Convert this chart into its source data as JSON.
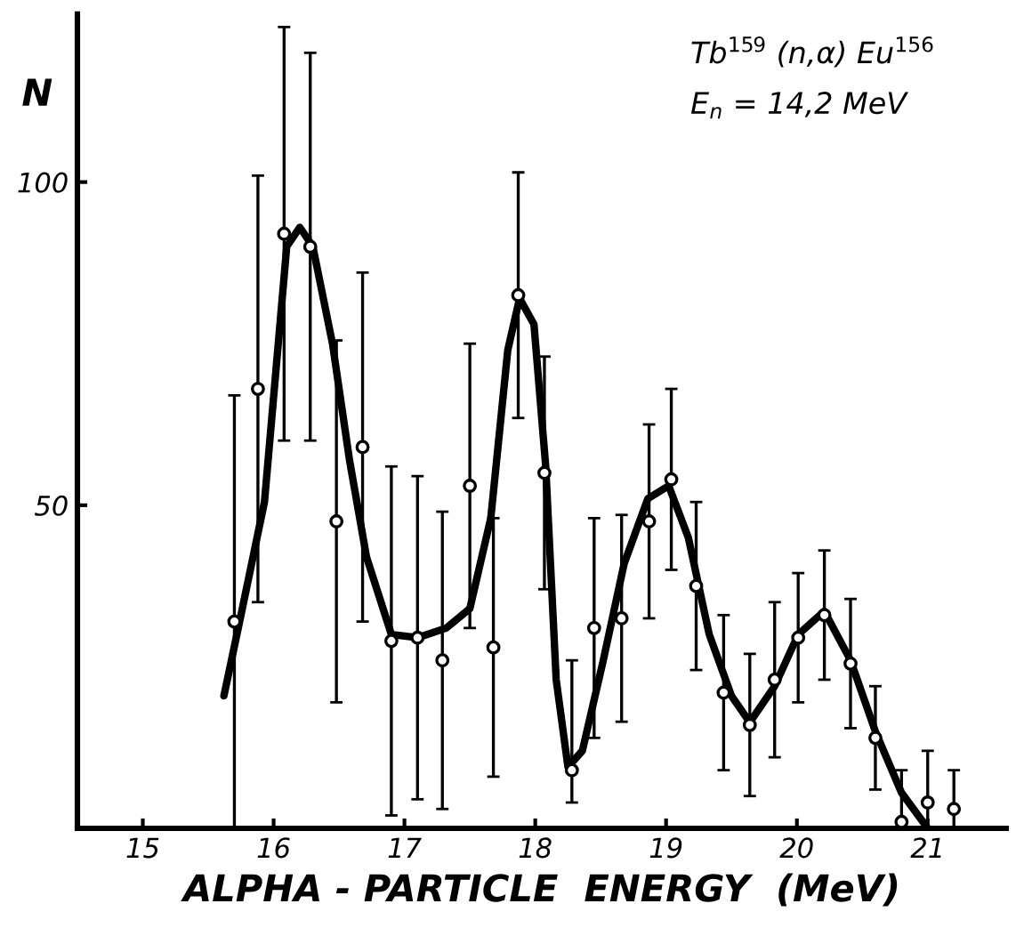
{
  "chart_data": {
    "type": "scatter",
    "xlabel": "ALPHA - PARTICLE  ENERGY  (MeV)",
    "ylabel": "N",
    "annotations": [
      "Tb$^{159}$ (n,α) Eu$^{156}$",
      "E$_{n}$ = 14,2 MeV"
    ],
    "xlim": [
      14.5,
      21.6
    ],
    "ylim": [
      0,
      126
    ],
    "xticks": [
      15,
      16,
      17,
      18,
      19,
      20,
      21
    ],
    "yticks": [
      50,
      100
    ],
    "grid": false,
    "legend": false,
    "series": [
      {
        "color": "#000000",
        "marker": "circle",
        "x": [
          15.7,
          15.88,
          16.08,
          16.28,
          16.48,
          16.68,
          16.9,
          17.1,
          17.29,
          17.5,
          17.68,
          17.87,
          18.07,
          18.28,
          18.45,
          18.66,
          18.87,
          19.04,
          19.23,
          19.44,
          19.64,
          19.83,
          20.01,
          20.21,
          20.41,
          20.6,
          20.8,
          21.0,
          21.2
        ],
        "values": [
          32,
          68,
          92,
          90,
          47.5,
          59,
          29,
          29.5,
          26,
          53,
          28,
          82.5,
          55,
          9,
          31,
          32.5,
          47.5,
          54,
          37.5,
          21,
          16,
          23,
          29.5,
          33,
          25.5,
          14,
          1,
          4,
          3
        ],
        "errors": [
          [
            0,
            67
          ],
          33,
          32,
          30,
          28,
          27,
          27,
          25,
          23,
          22,
          20,
          19,
          18,
          [
            4,
            26
          ],
          17,
          16,
          15,
          14,
          13,
          12,
          11,
          12,
          10,
          10,
          10,
          8,
          [
            0,
            9
          ],
          [
            0,
            12
          ],
          [
            0,
            9
          ]
        ]
      },
      {
        "type": "line",
        "color": "#000000",
        "marker": "none",
        "line_style": "solid",
        "x": [
          15.62,
          15.74,
          15.93,
          16.1,
          16.2,
          16.3,
          16.45,
          16.58,
          16.71,
          16.9,
          17.1,
          17.32,
          17.5,
          17.66,
          17.79,
          17.88,
          17.99,
          18.08,
          18.16,
          18.25,
          18.36,
          18.52,
          18.68,
          18.86,
          19.02,
          19.17,
          19.33,
          19.5,
          19.64,
          19.83,
          20.01,
          20.21,
          20.41,
          20.6,
          20.8,
          21.0
        ],
        "values": [
          20.5,
          32,
          50.5,
          90,
          93,
          90,
          75,
          57,
          42,
          30,
          29.5,
          31,
          34,
          48,
          74,
          82,
          78,
          56,
          23,
          9.5,
          12,
          26,
          41,
          51,
          53,
          45,
          30,
          20.5,
          16.4,
          22,
          30,
          33.6,
          26,
          15,
          5.5,
          0
        ]
      }
    ]
  }
}
